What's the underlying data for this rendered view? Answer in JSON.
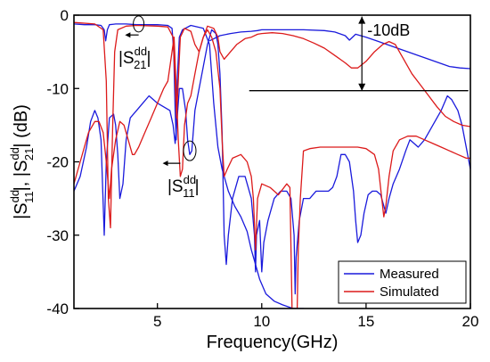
{
  "chart_data": {
    "type": "line",
    "title": "",
    "xlabel": "Frequency(GHz)",
    "ylabel": {
      "main": "|S",
      "sup1": "dd",
      "sub1": "11",
      "mid": "|, |S",
      "sup2": "dd",
      "sub2": "21",
      "end": "| (dB)"
    },
    "xlim": [
      1,
      20
    ],
    "ylim": [
      -40,
      0
    ],
    "x_ticks": [
      5,
      10,
      15,
      20
    ],
    "y_ticks": [
      0,
      -10,
      -20,
      -30,
      -40
    ],
    "legend": {
      "position": "bottom-right",
      "entries": [
        "Measured",
        "Simulated"
      ]
    },
    "annotations": {
      "s21": {
        "base": "|S",
        "sup": "dd",
        "sub": "21",
        "end": "|"
      },
      "s11": {
        "base": "|S",
        "sup": "dd",
        "sub": "11",
        "end": "|"
      },
      "margin": "-10dB"
    },
    "series": [
      {
        "name": "Measured",
        "color": "#1a1adc",
        "part": "S21",
        "points": [
          [
            1,
            -1.2
          ],
          [
            1.5,
            -1.3
          ],
          [
            2,
            -1.3
          ],
          [
            2.3,
            -1.4
          ],
          [
            2.45,
            -2
          ],
          [
            2.52,
            -3.5
          ],
          [
            2.6,
            -2
          ],
          [
            2.7,
            -1.3
          ],
          [
            3,
            -1.2
          ],
          [
            3.5,
            -1.2
          ],
          [
            4,
            -1.3
          ],
          [
            4.5,
            -1.3
          ],
          [
            5,
            -1.3
          ],
          [
            5.5,
            -1.4
          ],
          [
            5.7,
            -1.8
          ],
          [
            5.78,
            -5
          ],
          [
            5.85,
            -13
          ],
          [
            5.9,
            -17
          ],
          [
            5.95,
            -9
          ],
          [
            6.05,
            -3
          ],
          [
            6.2,
            -2
          ],
          [
            6.6,
            -1.4
          ],
          [
            7.2,
            -1.8
          ],
          [
            7.5,
            -4
          ],
          [
            7.7,
            -12
          ],
          [
            7.9,
            -18
          ],
          [
            8.1,
            -21
          ],
          [
            8.4,
            -24
          ],
          [
            8.7,
            -26
          ],
          [
            9.0,
            -27.5
          ],
          [
            9.3,
            -29.5
          ],
          [
            9.5,
            -32
          ],
          [
            9.7,
            -34
          ],
          [
            9.9,
            -36
          ],
          [
            10.2,
            -38
          ],
          [
            10.6,
            -39
          ],
          [
            11,
            -39.5
          ],
          [
            11.5,
            -40
          ],
          [
            12,
            -40
          ],
          [
            12.5,
            -40.5
          ],
          [
            13,
            -40.5
          ],
          [
            13.5,
            -40.5
          ]
        ]
      },
      {
        "name": "Measured",
        "color": "#1a1adc",
        "part": "S21-upper",
        "points": [
          [
            7.5,
            -3.5
          ],
          [
            8,
            -2.8
          ],
          [
            8.5,
            -2.5
          ],
          [
            9,
            -2.3
          ],
          [
            9.5,
            -2.2
          ],
          [
            9.8,
            -2.1
          ],
          [
            10,
            -2.0
          ],
          [
            10.5,
            -2
          ],
          [
            11,
            -2
          ],
          [
            12,
            -2
          ],
          [
            13,
            -2.1
          ],
          [
            13.5,
            -2.3
          ],
          [
            14,
            -2.8
          ],
          [
            14.2,
            -3.4
          ],
          [
            14.5,
            -2.6
          ],
          [
            15,
            -3
          ],
          [
            15.5,
            -3.5
          ],
          [
            16,
            -4
          ],
          [
            16.5,
            -4.5
          ],
          [
            17,
            -5
          ],
          [
            17.5,
            -5.5
          ],
          [
            18,
            -6
          ],
          [
            18.5,
            -6.5
          ],
          [
            19,
            -7
          ],
          [
            19.5,
            -7.2
          ],
          [
            20,
            -7.3
          ]
        ]
      },
      {
        "name": "Measured",
        "color": "#1a1adc",
        "part": "S11",
        "points": [
          [
            1,
            -24
          ],
          [
            1.3,
            -22
          ],
          [
            1.6,
            -18
          ],
          [
            1.8,
            -14.5
          ],
          [
            2.0,
            -13
          ],
          [
            2.15,
            -14
          ],
          [
            2.3,
            -17
          ],
          [
            2.45,
            -30
          ],
          [
            2.55,
            -20
          ],
          [
            2.7,
            -14
          ],
          [
            2.9,
            -13.5
          ],
          [
            3.0,
            -15
          ],
          [
            3.1,
            -19
          ],
          [
            3.2,
            -25
          ],
          [
            3.35,
            -23
          ],
          [
            3.5,
            -17
          ],
          [
            3.7,
            -14
          ],
          [
            4,
            -13
          ],
          [
            4.3,
            -12
          ],
          [
            4.6,
            -11
          ],
          [
            5,
            -12
          ],
          [
            5.3,
            -12.5
          ],
          [
            5.6,
            -13
          ],
          [
            5.75,
            -15
          ],
          [
            5.85,
            -17.5
          ],
          [
            5.95,
            -14
          ],
          [
            6.05,
            -10
          ],
          [
            6.2,
            -10
          ],
          [
            6.35,
            -13
          ],
          [
            6.45,
            -17
          ],
          [
            6.55,
            -19
          ],
          [
            6.65,
            -18.5
          ],
          [
            6.8,
            -13
          ],
          [
            7.0,
            -10
          ],
          [
            7.2,
            -7
          ],
          [
            7.4,
            -4
          ],
          [
            7.6,
            -2
          ],
          [
            7.8,
            -2.5
          ],
          [
            7.9,
            -4
          ],
          [
            8.0,
            -8
          ],
          [
            8.1,
            -16
          ],
          [
            8.2,
            -30
          ],
          [
            8.3,
            -34
          ],
          [
            8.4,
            -30
          ],
          [
            8.6,
            -25
          ],
          [
            8.9,
            -22
          ],
          [
            9.2,
            -22
          ],
          [
            9.5,
            -25
          ],
          [
            9.65,
            -30
          ],
          [
            9.7,
            -35
          ],
          [
            9.75,
            -30
          ],
          [
            9.9,
            -28
          ],
          [
            10.0,
            -35
          ],
          [
            10.1,
            -31
          ],
          [
            10.3,
            -28
          ],
          [
            10.6,
            -25
          ],
          [
            10.9,
            -24
          ],
          [
            11.2,
            -24
          ],
          [
            11.4,
            -25
          ],
          [
            11.55,
            -30
          ],
          [
            11.6,
            -38
          ],
          [
            11.65,
            -33
          ],
          [
            11.8,
            -28
          ],
          [
            12,
            -25
          ],
          [
            12.3,
            -25
          ],
          [
            12.6,
            -24
          ],
          [
            12.8,
            -24
          ],
          [
            13,
            -24
          ],
          [
            13.2,
            -24
          ],
          [
            13.4,
            -23.5
          ],
          [
            13.6,
            -22
          ],
          [
            13.8,
            -19
          ],
          [
            14.0,
            -19
          ],
          [
            14.2,
            -20
          ],
          [
            14.4,
            -24
          ],
          [
            14.5,
            -28
          ],
          [
            14.6,
            -31
          ],
          [
            14.75,
            -30
          ],
          [
            14.9,
            -27
          ],
          [
            15.1,
            -24.5
          ],
          [
            15.3,
            -24
          ],
          [
            15.5,
            -24
          ],
          [
            15.7,
            -24.5
          ],
          [
            15.85,
            -26
          ],
          [
            15.95,
            -27
          ],
          [
            16.1,
            -25
          ],
          [
            16.3,
            -23
          ],
          [
            16.6,
            -21
          ],
          [
            16.9,
            -18.5
          ],
          [
            17.1,
            -17
          ],
          [
            17.3,
            -17.5
          ],
          [
            17.5,
            -18
          ],
          [
            17.8,
            -17
          ],
          [
            18.2,
            -15
          ],
          [
            18.6,
            -13
          ],
          [
            18.9,
            -11
          ],
          [
            19.1,
            -11.5
          ],
          [
            19.4,
            -13
          ],
          [
            19.6,
            -15
          ],
          [
            19.8,
            -18
          ],
          [
            20,
            -21
          ]
        ]
      },
      {
        "name": "Simulated",
        "color": "#dc1a1a",
        "part": "S21",
        "points": [
          [
            1,
            -1.0
          ],
          [
            2,
            -1.2
          ],
          [
            2.4,
            -2
          ],
          [
            2.55,
            -9
          ],
          [
            2.65,
            -25
          ],
          [
            2.75,
            -29
          ],
          [
            2.85,
            -16
          ],
          [
            2.95,
            -5
          ],
          [
            3.1,
            -2
          ],
          [
            3.5,
            -1.5
          ],
          [
            4,
            -1.4
          ],
          [
            5,
            -1.5
          ],
          [
            5.5,
            -1.6
          ],
          [
            5.75,
            -3
          ],
          [
            5.85,
            -9
          ],
          [
            5.92,
            -14
          ],
          [
            6.0,
            -9
          ],
          [
            6.1,
            -3
          ],
          [
            6.3,
            -1.8
          ],
          [
            6.6,
            -2.2
          ],
          [
            6.8,
            -4
          ],
          [
            7.0,
            -5
          ],
          [
            7.2,
            -3
          ],
          [
            7.4,
            -1.5
          ],
          [
            7.7,
            -1.8
          ],
          [
            7.9,
            -3
          ],
          [
            8.0,
            -5
          ],
          [
            8.2,
            -6
          ],
          [
            8.5,
            -5
          ],
          [
            8.8,
            -4
          ],
          [
            9.2,
            -3.2
          ],
          [
            9.5,
            -3
          ],
          [
            9.8,
            -2.6
          ],
          [
            10,
            -2.5
          ],
          [
            10.5,
            -2.4
          ],
          [
            11,
            -2.5
          ],
          [
            11.5,
            -2.8
          ],
          [
            12,
            -3.2
          ],
          [
            12.5,
            -3.8
          ],
          [
            13,
            -4.5
          ],
          [
            13.5,
            -5.5
          ],
          [
            14,
            -6.5
          ],
          [
            14.3,
            -7.2
          ],
          [
            14.6,
            -7.2
          ],
          [
            15,
            -6.3
          ],
          [
            15.4,
            -5
          ],
          [
            15.8,
            -4
          ],
          [
            16.1,
            -3.6
          ],
          [
            16.4,
            -4
          ],
          [
            16.8,
            -6
          ],
          [
            17.2,
            -8
          ],
          [
            17.6,
            -9.5
          ],
          [
            18,
            -11
          ],
          [
            18.4,
            -12.5
          ],
          [
            18.8,
            -13.8
          ],
          [
            19.2,
            -14.5
          ],
          [
            19.6,
            -15
          ],
          [
            20,
            -15.2
          ]
        ]
      },
      {
        "name": "Simulated",
        "color": "#dc1a1a",
        "part": "S11",
        "points": [
          [
            1,
            -23
          ],
          [
            1.3,
            -20
          ],
          [
            1.7,
            -16
          ],
          [
            2.0,
            -14.5
          ],
          [
            2.2,
            -14.5
          ],
          [
            2.4,
            -16
          ],
          [
            2.55,
            -20
          ],
          [
            2.7,
            -25
          ],
          [
            2.8,
            -21
          ],
          [
            3.0,
            -17
          ],
          [
            3.2,
            -14.5
          ],
          [
            3.4,
            -15
          ],
          [
            3.6,
            -17
          ],
          [
            3.8,
            -19
          ],
          [
            3.9,
            -19
          ],
          [
            4.1,
            -18
          ],
          [
            4.4,
            -16
          ],
          [
            4.7,
            -14
          ],
          [
            5,
            -12
          ],
          [
            5.3,
            -10
          ],
          [
            5.5,
            -9
          ],
          [
            5.65,
            -6
          ],
          [
            5.8,
            -3
          ],
          [
            5.9,
            -10
          ],
          [
            6.0,
            -17
          ],
          [
            6.1,
            -22
          ],
          [
            6.2,
            -21
          ],
          [
            6.3,
            -15
          ],
          [
            6.45,
            -12
          ],
          [
            6.6,
            -11
          ],
          [
            6.8,
            -8
          ],
          [
            7.0,
            -5
          ],
          [
            7.2,
            -3
          ],
          [
            7.4,
            -2
          ],
          [
            7.6,
            -3
          ],
          [
            7.8,
            -5
          ],
          [
            8.0,
            -10
          ],
          [
            8.1,
            -17
          ],
          [
            8.2,
            -22
          ],
          [
            8.35,
            -21
          ],
          [
            8.6,
            -19.5
          ],
          [
            9.0,
            -19
          ],
          [
            9.3,
            -20
          ],
          [
            9.5,
            -22
          ],
          [
            9.6,
            -25
          ],
          [
            9.7,
            -32
          ],
          [
            9.8,
            -25
          ],
          [
            10,
            -23
          ],
          [
            10.4,
            -23.5
          ],
          [
            10.8,
            -24.5
          ],
          [
            11.2,
            -23
          ],
          [
            11.35,
            -23.5
          ],
          [
            11.45,
            -40
          ],
          [
            11.55,
            -40
          ],
          [
            11.7,
            -40
          ],
          [
            11.75,
            -32
          ],
          [
            11.85,
            -25
          ],
          [
            12,
            -18.5
          ],
          [
            12.3,
            -18.2
          ],
          [
            12.8,
            -18
          ],
          [
            13.4,
            -18
          ],
          [
            14,
            -18
          ],
          [
            14.6,
            -18
          ],
          [
            15,
            -18.2
          ],
          [
            15.4,
            -19
          ],
          [
            15.6,
            -21
          ],
          [
            15.75,
            -25
          ],
          [
            15.85,
            -27.5
          ],
          [
            15.95,
            -26
          ],
          [
            16.1,
            -22
          ],
          [
            16.3,
            -18.5
          ],
          [
            16.6,
            -17
          ],
          [
            17,
            -16.5
          ],
          [
            17.4,
            -16.5
          ],
          [
            17.8,
            -17
          ],
          [
            18.2,
            -17.5
          ],
          [
            18.6,
            -18
          ],
          [
            19,
            -18.5
          ],
          [
            19.4,
            -19
          ],
          [
            19.8,
            -19.5
          ],
          [
            20,
            -19.5
          ]
        ]
      }
    ]
  }
}
